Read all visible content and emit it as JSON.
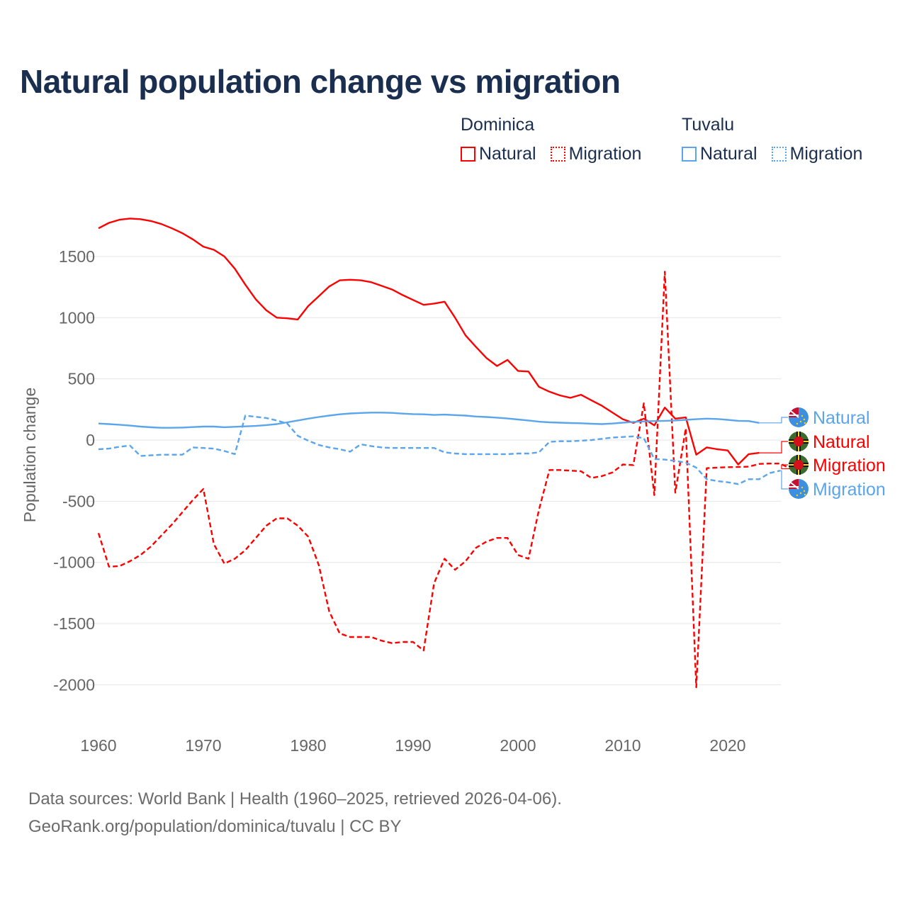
{
  "colors": {
    "dominica": "#ff0000",
    "tuvalu": "#5aa5ec",
    "title": "#1a2e4f",
    "grid": "#e6e6e6",
    "tick": "#666666"
  },
  "chart_data": {
    "type": "line",
    "title": "Natural population change vs migration",
    "xlabel": "",
    "ylabel": "Population change",
    "xlim": [
      1960,
      2025
    ],
    "ylim": [
      -2000,
      1800
    ],
    "xticks": [
      "1960",
      "1970",
      "1980",
      "1990",
      "2000",
      "2010",
      "2020"
    ],
    "yticks": [
      "1500",
      "1000",
      "500",
      "0",
      "-500",
      "-1000",
      "-1500",
      "-2000"
    ],
    "grid": true,
    "legend": {
      "placement": "top-right",
      "groups": [
        {
          "name": "Dominica",
          "items": [
            "Natural",
            "Migration"
          ]
        },
        {
          "name": "Tuvalu",
          "items": [
            "Natural",
            "Migration"
          ]
        }
      ]
    },
    "series": [
      {
        "name": "Natural",
        "country": "Dominica",
        "style": "solid",
        "start": 1960,
        "values": [
          1730,
          1775,
          1800,
          1810,
          1805,
          1790,
          1765,
          1730,
          1690,
          1640,
          1580,
          1555,
          1500,
          1400,
          1270,
          1150,
          1060,
          1000,
          995,
          985,
          1095,
          1175,
          1255,
          1305,
          1310,
          1305,
          1290,
          1260,
          1230,
          1185,
          1145,
          1105,
          1115,
          1130,
          1000,
          855,
          760,
          670,
          605,
          655,
          565,
          560,
          435,
          395,
          365,
          345,
          370,
          325,
          280,
          225,
          170,
          140,
          175,
          120,
          265,
          175,
          185,
          -120,
          -60,
          -75,
          -85,
          -200,
          -115,
          -105
        ]
      },
      {
        "name": "Migration",
        "country": "Dominica",
        "style": "dashed",
        "start": 1960,
        "values": [
          -760,
          -1035,
          -1030,
          -990,
          -940,
          -870,
          -780,
          -690,
          -590,
          -490,
          -400,
          -850,
          -1010,
          -970,
          -900,
          -800,
          -700,
          -640,
          -640,
          -700,
          -790,
          -1020,
          -1400,
          -1580,
          -1610,
          -1610,
          -1610,
          -1640,
          -1660,
          -1650,
          -1650,
          -1720,
          -1170,
          -970,
          -1060,
          -990,
          -880,
          -830,
          -800,
          -800,
          -940,
          -970,
          -570,
          -245,
          -245,
          -250,
          -255,
          -310,
          -295,
          -265,
          -200,
          -205,
          300,
          -450,
          1375,
          -430,
          95,
          -2020,
          -230,
          -225,
          -222,
          -220,
          -218,
          -195,
          -192,
          -192,
          -235
        ]
      },
      {
        "name": "Natural",
        "country": "Tuvalu",
        "style": "solid",
        "start": 1960,
        "values": [
          135,
          130,
          125,
          118,
          110,
          104,
          100,
          100,
          102,
          106,
          110,
          110,
          105,
          108,
          112,
          115,
          122,
          130,
          145,
          160,
          175,
          188,
          200,
          210,
          217,
          221,
          224,
          224,
          222,
          216,
          212,
          210,
          205,
          208,
          204,
          200,
          192,
          188,
          183,
          176,
          168,
          160,
          150,
          145,
          142,
          139,
          137,
          133,
          130,
          135,
          142,
          148,
          152,
          155,
          157,
          160,
          165,
          170,
          175,
          172,
          165,
          157,
          155,
          140
        ]
      },
      {
        "name": "Migration",
        "country": "Tuvalu",
        "style": "dashed",
        "start": 1960,
        "values": [
          -75,
          -70,
          -55,
          -45,
          -130,
          -125,
          -120,
          -120,
          -120,
          -60,
          -65,
          -70,
          -90,
          -115,
          200,
          190,
          180,
          160,
          135,
          35,
          -5,
          -40,
          -60,
          -75,
          -95,
          -35,
          -50,
          -60,
          -65,
          -65,
          -65,
          -65,
          -65,
          -100,
          -110,
          -115,
          -115,
          -115,
          -115,
          -115,
          -110,
          -110,
          -100,
          -15,
          -10,
          -10,
          -5,
          0,
          10,
          20,
          25,
          30,
          15,
          -155,
          -160,
          -170,
          -185,
          -225,
          -320,
          -335,
          -345,
          -360,
          -320,
          -320,
          -270,
          -250
        ]
      }
    ],
    "end_labels": [
      "Natural",
      "Natural",
      "Migration",
      "Migration"
    ]
  },
  "legend": {
    "dominica": "Dominica",
    "tuvalu": "Tuvalu",
    "natural": "Natural",
    "migration": "Migration"
  },
  "source": {
    "line1": "Data sources: World Bank | Health (1960–2025, retrieved 2026-04-06).",
    "line2": "GeoRank.org/population/dominica/tuvalu | CC BY"
  }
}
